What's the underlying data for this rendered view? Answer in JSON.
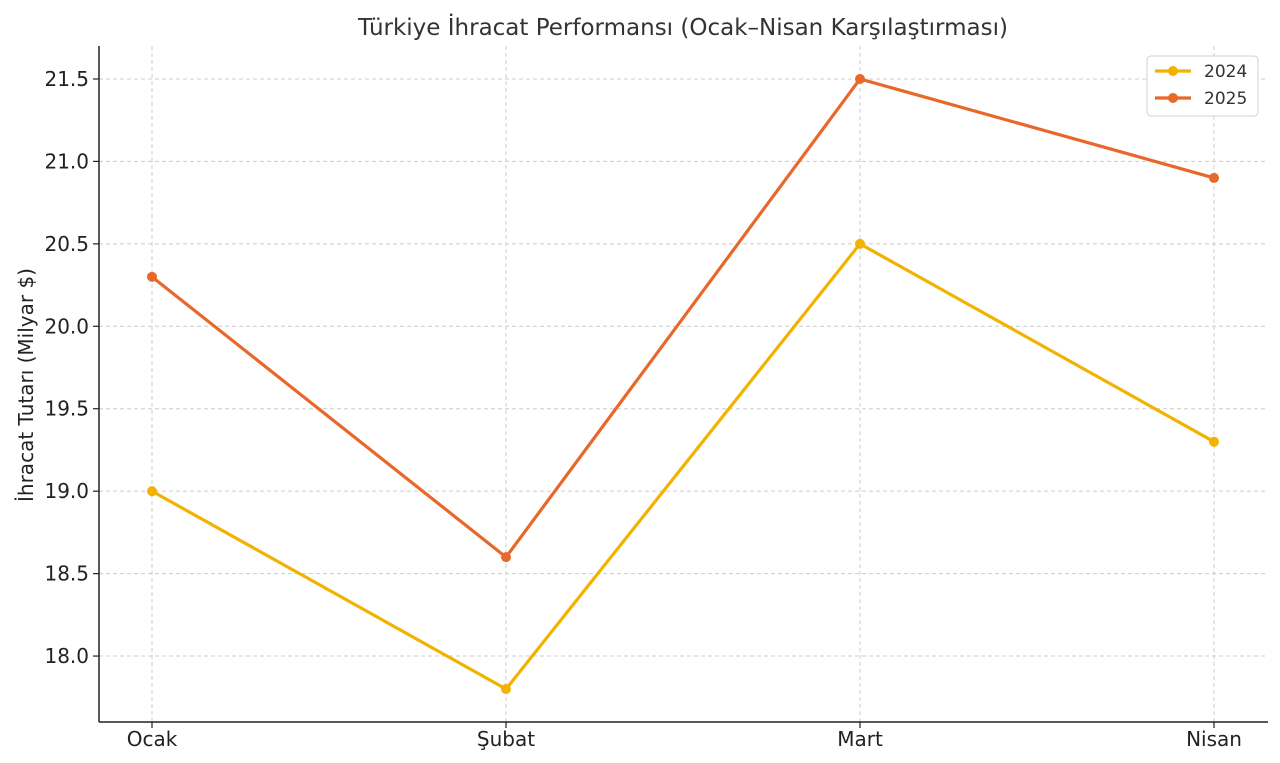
{
  "chart_data": {
    "type": "line",
    "title": "Türkiye İhracat Performansı (Ocak–Nisan Karşılaştırması)",
    "xlabel": "",
    "ylabel": "İhracat Tutarı (Milyar $)",
    "categories": [
      "Ocak",
      "Şubat",
      "Mart",
      "Nisan"
    ],
    "series": [
      {
        "name": "2024",
        "values": [
          19.0,
          17.8,
          20.5,
          19.3
        ],
        "color": "#F2B200"
      },
      {
        "name": "2025",
        "values": [
          20.3,
          18.6,
          21.5,
          20.9
        ],
        "color": "#E8682A"
      }
    ],
    "ylim": [
      17.6,
      21.7
    ],
    "yticks": [
      "18.0",
      "18.5",
      "19.0",
      "19.5",
      "20.0",
      "20.5",
      "21.0",
      "21.5"
    ],
    "grid": true,
    "legend_position": "top-right"
  }
}
